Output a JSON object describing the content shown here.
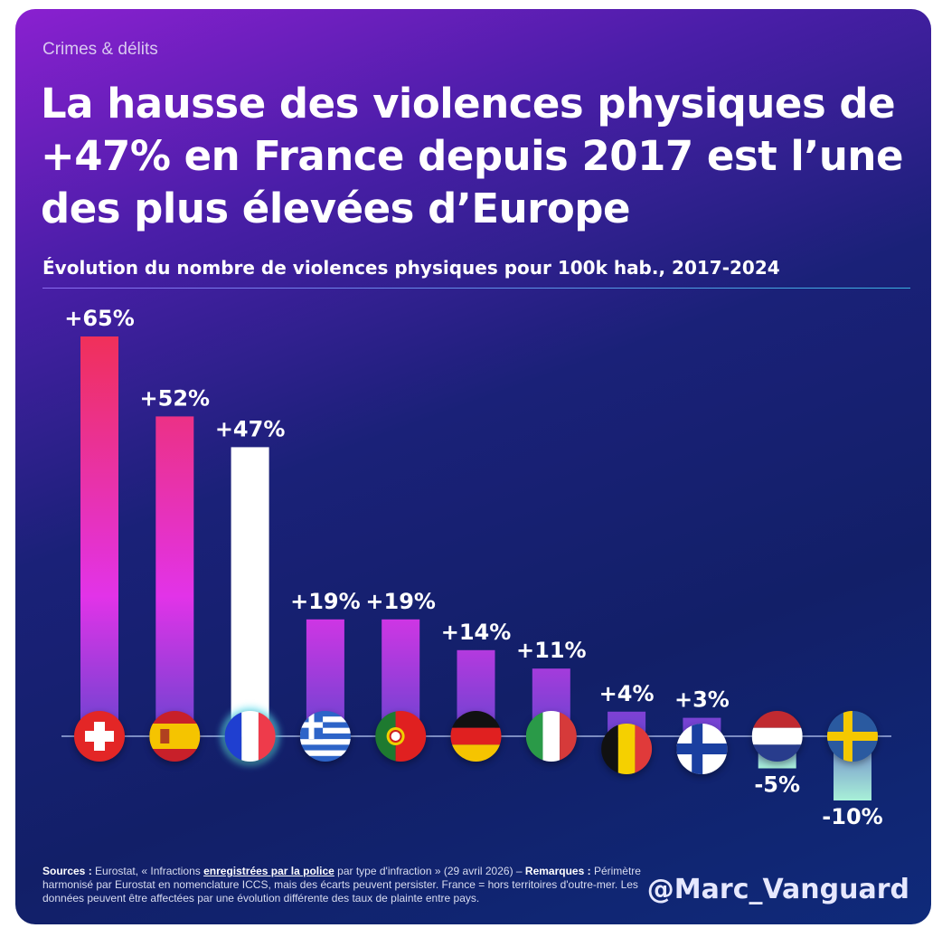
{
  "kicker": "Crimes & délits",
  "title": "La hausse des violences physiques de +47% en France depuis 2017 est l’une des plus élevées d’Europe",
  "subtitle": "Évolution du nombre de violences physiques pour 100k hab., 2017-2024",
  "footer": {
    "sources_label": "Sources :",
    "sources_pre": " Eurostat, « Infractions ",
    "sources_link": "enregistrées par la police",
    "sources_post": " par type d'infraction » (29 avril 2026) – ",
    "remarks_label": "Remarques :",
    "remarks_text": " Périmètre harmonisé par Eurostat en nomenclature ICCS, mais des écarts peuvent persister. France = hors territoires d'outre-mer. Les données peuvent être affectées par une évolution différente des taux de plainte entre pays."
  },
  "handle": "@Marc_Vanguard",
  "colors": {
    "bar_top": "#f0305a",
    "bar_mid": "#e233e8",
    "bar_bottom": "#6a44d0",
    "highlight": "#ffffff",
    "negative": "#a8f0d8"
  },
  "chart_data": {
    "type": "bar",
    "categories": [
      "switzerland-flag-icon",
      "spain-flag-icon",
      "france-flag-icon",
      "greece-flag-icon",
      "portugal-flag-icon",
      "germany-flag-icon",
      "italy-flag-icon",
      "belgium-flag-icon",
      "finland-flag-icon",
      "netherlands-flag-icon",
      "sweden-flag-icon"
    ],
    "values": [
      65,
      52,
      47,
      19,
      19,
      14,
      11,
      4,
      3,
      -5,
      -10
    ],
    "labels": [
      "+65%",
      "+52%",
      "+47%",
      "+19%",
      "+19%",
      "+14%",
      "+11%",
      "+4%",
      "+3%",
      "-5%",
      "-10%"
    ],
    "highlight": "france-flag-icon",
    "ylabel": "",
    "xlabel": "",
    "grid": false
  }
}
